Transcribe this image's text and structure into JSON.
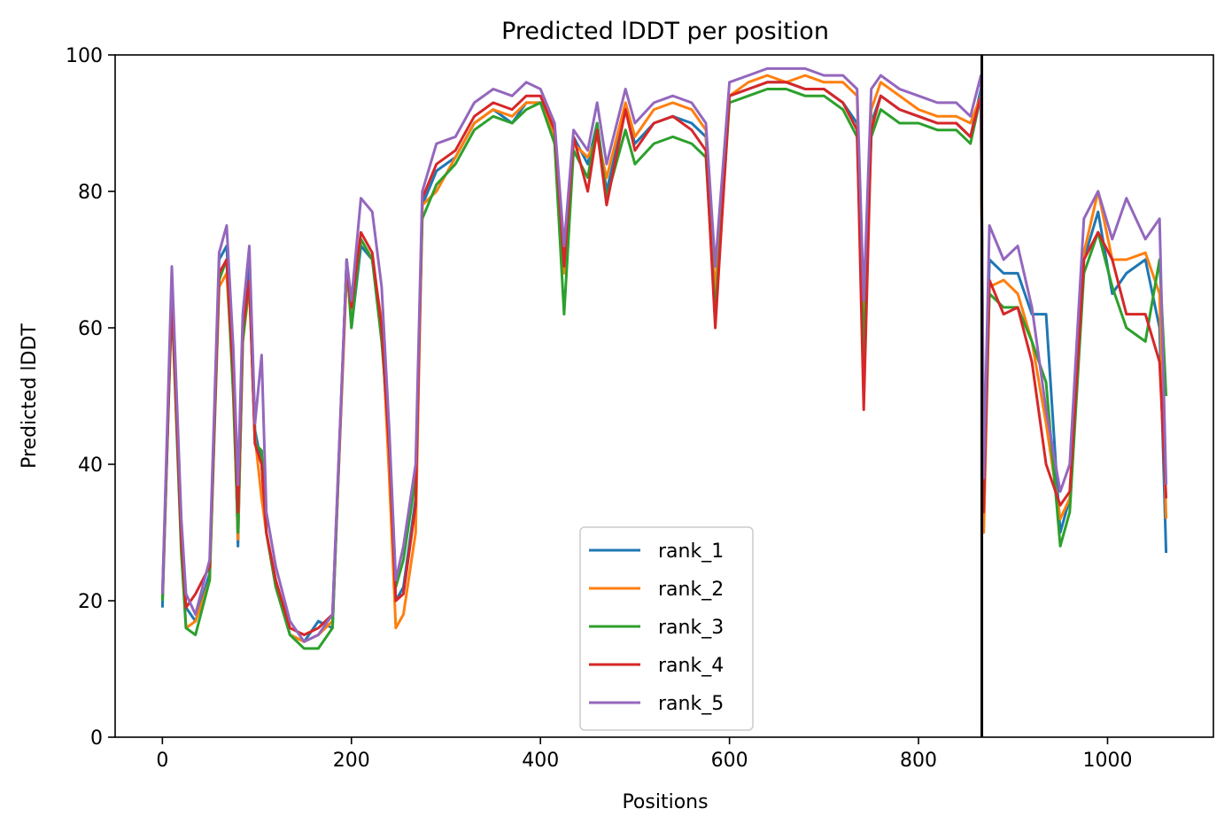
{
  "chart_data": {
    "type": "line",
    "title": "Predicted lDDT per position",
    "xlabel": "Positions",
    "ylabel": "Predicted lDDT",
    "xlim": [
      -50,
      1112
    ],
    "ylim": [
      0,
      100
    ],
    "xticks": [
      0,
      200,
      400,
      600,
      800,
      1000
    ],
    "yticks": [
      0,
      20,
      40,
      60,
      80,
      100
    ],
    "grid": false,
    "legend_position": "bottom-center",
    "vline": {
      "x": 867,
      "color": "#000000"
    },
    "x": [
      0,
      10,
      20,
      25,
      35,
      50,
      60,
      68,
      75,
      80,
      85,
      92,
      98,
      105,
      110,
      120,
      135,
      150,
      165,
      180,
      195,
      200,
      210,
      222,
      232,
      240,
      247,
      255,
      268,
      275,
      290,
      310,
      330,
      350,
      370,
      385,
      400,
      415,
      425,
      435,
      450,
      460,
      470,
      490,
      500,
      520,
      540,
      560,
      575,
      585,
      600,
      620,
      640,
      660,
      680,
      700,
      720,
      735,
      742,
      750,
      760,
      780,
      800,
      820,
      840,
      855,
      866,
      869,
      875,
      890,
      905,
      920,
      935,
      950,
      960,
      975,
      990,
      1005,
      1020,
      1040,
      1055,
      1062
    ],
    "series": [
      {
        "name": "rank_1",
        "color": "#1f77b4",
        "values": [
          19,
          66,
          30,
          19,
          17,
          24,
          70,
          72,
          55,
          28,
          60,
          70,
          45,
          40,
          30,
          22,
          15,
          14,
          17,
          16,
          70,
          60,
          72,
          70,
          60,
          40,
          20,
          22,
          35,
          78,
          83,
          85,
          90,
          92,
          90,
          93,
          93,
          89,
          70,
          88,
          84,
          90,
          80,
          92,
          87,
          90,
          91,
          90,
          88,
          65,
          94,
          95,
          96,
          96,
          95,
          95,
          93,
          90,
          58,
          90,
          94,
          92,
          91,
          90,
          90,
          88,
          95,
          35,
          70,
          68,
          68,
          62,
          62,
          30,
          35,
          70,
          77,
          65,
          68,
          70,
          60,
          27
        ]
      },
      {
        "name": "rank_2",
        "color": "#ff7f0e",
        "values": [
          20,
          65,
          28,
          16,
          17,
          23,
          66,
          68,
          52,
          29,
          58,
          66,
          44,
          35,
          30,
          22,
          15,
          14,
          15,
          17,
          68,
          62,
          73,
          70,
          61,
          38,
          16,
          18,
          30,
          78,
          80,
          85,
          90,
          92,
          91,
          93,
          93,
          88,
          68,
          87,
          85,
          88,
          82,
          93,
          88,
          92,
          93,
          92,
          89,
          65,
          94,
          96,
          97,
          96,
          97,
          96,
          96,
          94,
          58,
          92,
          96,
          94,
          92,
          91,
          91,
          90,
          94,
          30,
          66,
          67,
          65,
          58,
          46,
          32,
          35,
          71,
          80,
          70,
          70,
          71,
          65,
          32
        ]
      },
      {
        "name": "rank_3",
        "color": "#2ca02c",
        "values": [
          20,
          64,
          27,
          16,
          15,
          23,
          67,
          70,
          50,
          30,
          58,
          67,
          43,
          42,
          30,
          22,
          15,
          13,
          13,
          16,
          70,
          60,
          73,
          70,
          58,
          44,
          22,
          26,
          38,
          76,
          81,
          84,
          89,
          91,
          90,
          92,
          93,
          87,
          62,
          86,
          82,
          90,
          79,
          89,
          84,
          87,
          88,
          87,
          85,
          62,
          93,
          94,
          95,
          95,
          94,
          94,
          92,
          88,
          56,
          88,
          92,
          90,
          90,
          89,
          89,
          87,
          94,
          34,
          65,
          63,
          63,
          58,
          52,
          28,
          33,
          68,
          74,
          66,
          60,
          58,
          70,
          50
        ]
      },
      {
        "name": "rank_4",
        "color": "#d62728",
        "values": [
          21,
          65,
          29,
          19,
          21,
          25,
          68,
          70,
          53,
          33,
          60,
          67,
          43,
          40,
          30,
          23,
          16,
          15,
          16,
          18,
          69,
          63,
          74,
          71,
          60,
          42,
          20,
          21,
          34,
          79,
          84,
          86,
          91,
          93,
          92,
          94,
          94,
          89,
          69,
          88,
          80,
          89,
          78,
          92,
          86,
          90,
          91,
          89,
          86,
          60,
          94,
          95,
          96,
          96,
          95,
          95,
          93,
          89,
          48,
          89,
          94,
          92,
          91,
          90,
          90,
          88,
          94,
          33,
          67,
          62,
          63,
          55,
          40,
          34,
          36,
          70,
          74,
          70,
          62,
          62,
          55,
          35
        ]
      },
      {
        "name": "rank_5",
        "color": "#9467bd",
        "values": [
          21,
          69,
          32,
          21,
          18,
          26,
          71,
          75,
          57,
          37,
          62,
          72,
          46,
          56,
          33,
          25,
          17,
          14,
          15,
          18,
          70,
          64,
          79,
          77,
          66,
          45,
          23,
          28,
          40,
          80,
          87,
          88,
          93,
          95,
          94,
          96,
          95,
          90,
          72,
          89,
          86,
          93,
          84,
          95,
          90,
          93,
          94,
          93,
          90,
          69,
          96,
          97,
          98,
          98,
          98,
          97,
          97,
          95,
          64,
          95,
          97,
          95,
          94,
          93,
          93,
          91,
          97,
          38,
          75,
          70,
          72,
          63,
          48,
          36,
          40,
          76,
          80,
          73,
          79,
          73,
          76,
          37
        ]
      }
    ]
  }
}
